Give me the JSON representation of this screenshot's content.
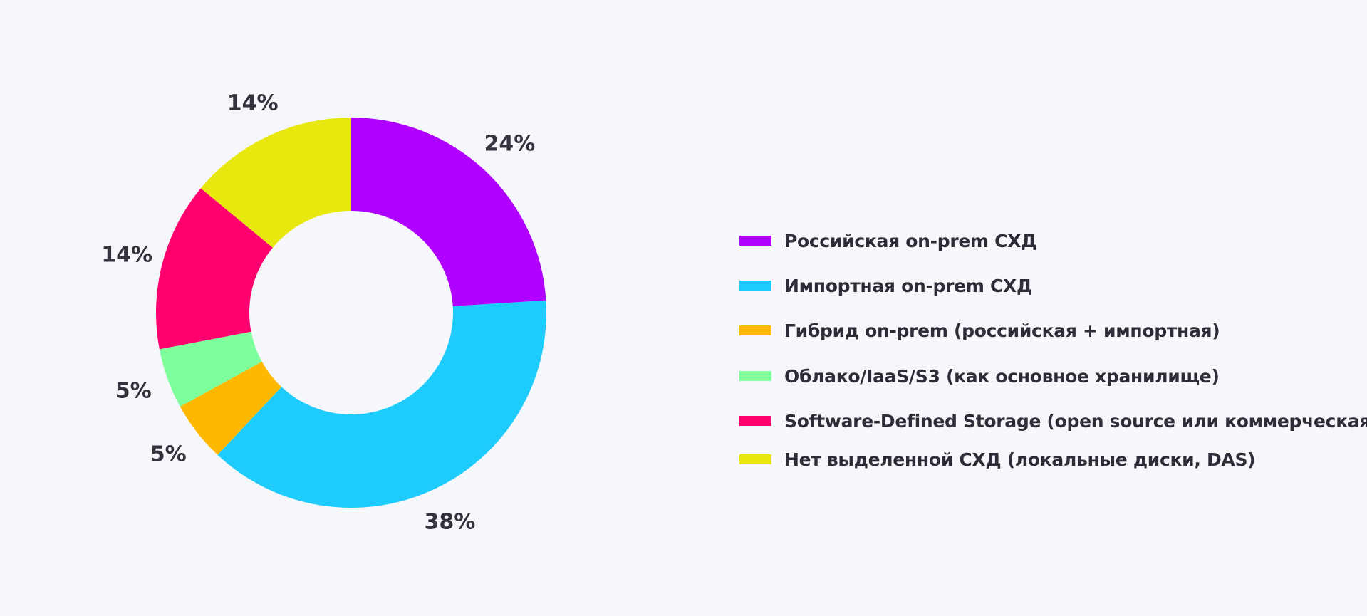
{
  "chart_data": {
    "type": "pie",
    "donut": true,
    "title": "",
    "legend_position": "right",
    "slices": [
      {
        "label": "Российская on-prem СХД",
        "value": 24,
        "display": "24%",
        "color": "#b000ff"
      },
      {
        "label": "Импортная on-prem СХД",
        "value": 38,
        "display": "38%",
        "color": "#1ecbfd"
      },
      {
        "label": "Гибрид on-prem (российская + импортная)",
        "value": 5,
        "display": "5%",
        "color": "#ffb800"
      },
      {
        "label": "Облако/IaaS/S3 (как основное хранилище)",
        "value": 5,
        "display": "5%",
        "color": "#7dff9c"
      },
      {
        "label": "Software-Defined Storage (open source или коммерческая)",
        "value": 14,
        "display": "14%",
        "color": "#ff006e"
      },
      {
        "label": "Нет выделенной СХД (локальные диски, DAS)",
        "value": 14,
        "display": "14%",
        "color": "#e9e80e"
      }
    ]
  }
}
